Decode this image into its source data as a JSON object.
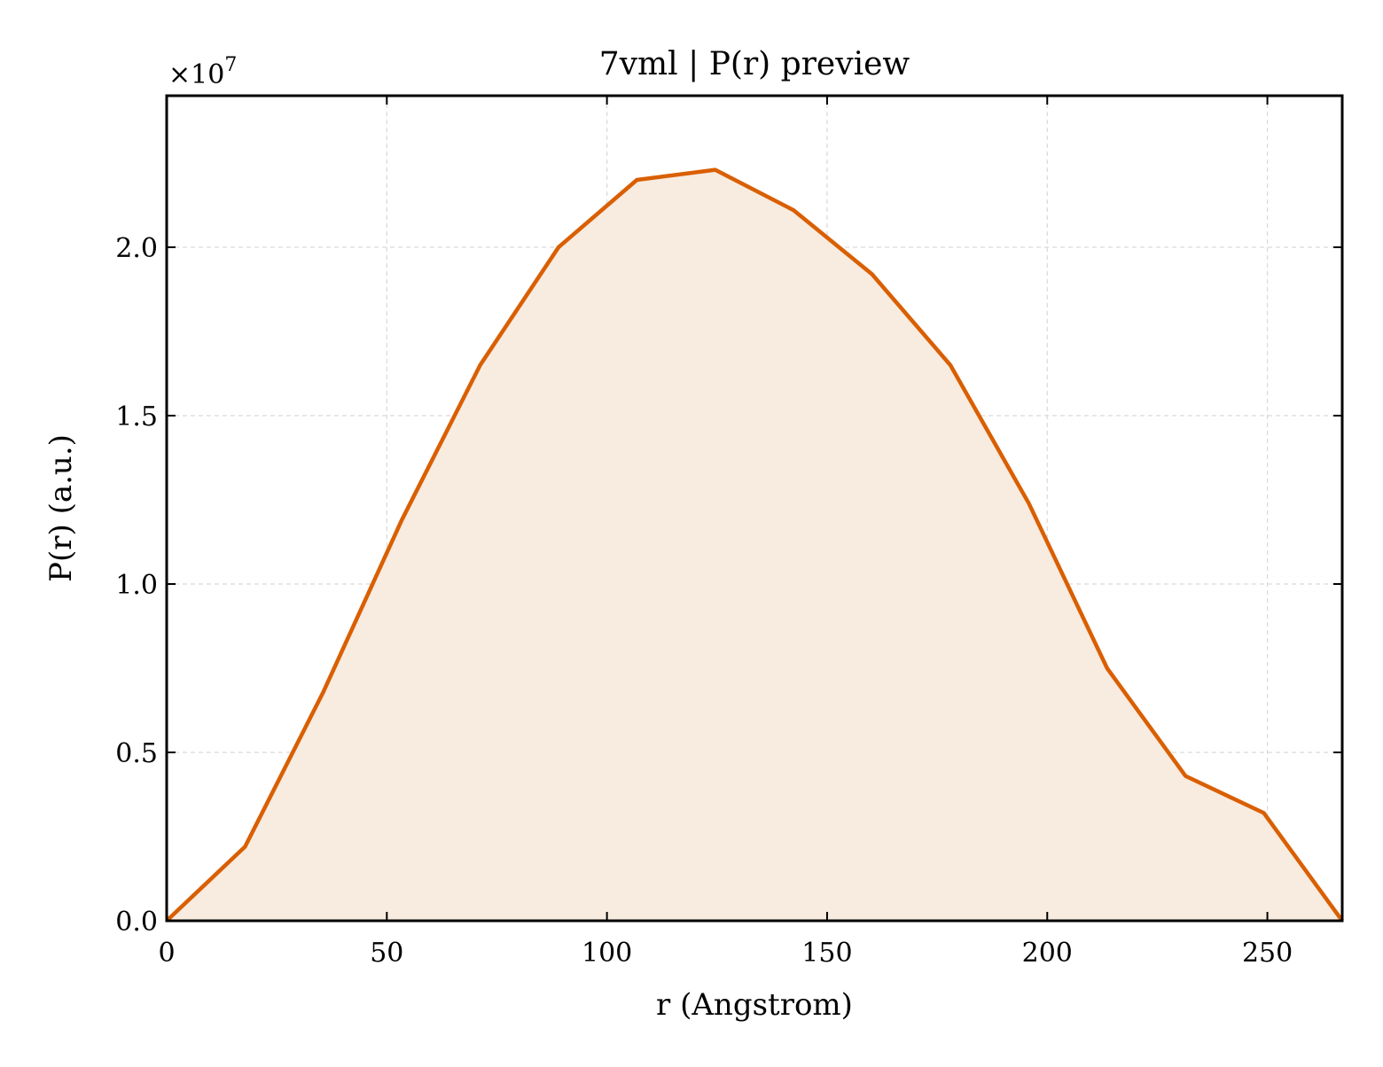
{
  "chart_data": {
    "type": "area",
    "title": "7vml | P(r) preview",
    "xlabel": "r (Angstrom)",
    "ylabel": "P(r) (a.u.)",
    "y_multiplier": "×10",
    "y_multiplier_exp": "7",
    "xlim": [
      0,
      267
    ],
    "ylim": [
      0,
      2.45
    ],
    "xticks": [
      0,
      50,
      100,
      150,
      200,
      250
    ],
    "xtick_labels": [
      "0",
      "50",
      "100",
      "150",
      "200",
      "250"
    ],
    "yticks": [
      0.0,
      0.5,
      1.0,
      1.5,
      2.0
    ],
    "ytick_labels": [
      "0.0",
      "0.5",
      "1.0",
      "1.5",
      "2.0"
    ],
    "grid": true,
    "series": [
      {
        "x": [
          0,
          17.8,
          35.6,
          53.4,
          71.2,
          89.0,
          106.8,
          124.6,
          142.4,
          160.2,
          178.0,
          195.8,
          213.6,
          231.4,
          249.2,
          267.0
        ],
        "y": [
          0.0,
          0.22,
          0.68,
          1.19,
          1.65,
          2.0,
          2.2,
          2.23,
          2.11,
          1.92,
          1.65,
          1.24,
          0.75,
          0.43,
          0.32,
          0.0
        ],
        "color": "#d95f02",
        "fill_color": "#f8ebe0"
      }
    ]
  }
}
